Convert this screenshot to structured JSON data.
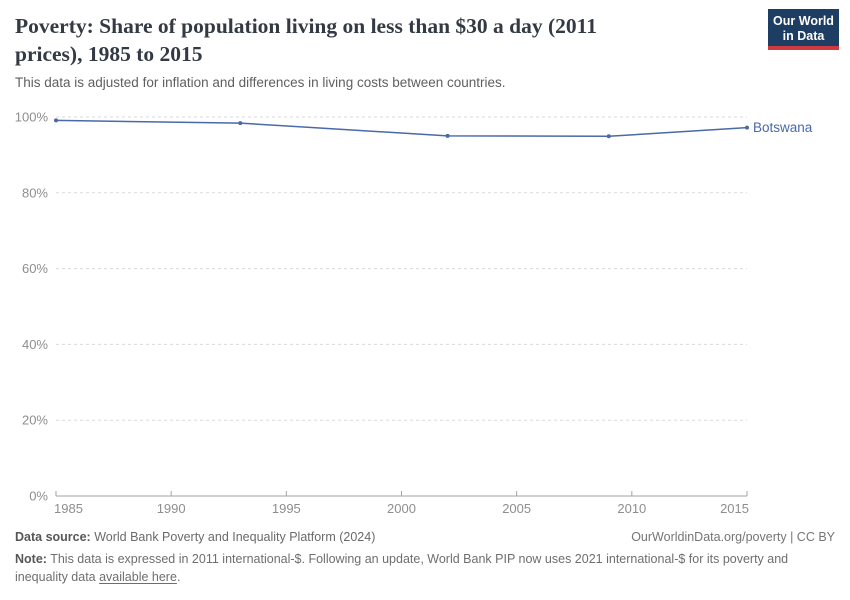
{
  "header": {
    "title_line1": "Poverty: Share of population living on less than $30 a day (2011",
    "title_line2": "prices), 1985 to 2015",
    "subtitle": "This data is adjusted for inflation and differences in living costs between countries.",
    "logo_line1": "Our World",
    "logo_line2": "in Data"
  },
  "chart_data": {
    "type": "line",
    "title": "Poverty: Share of population living on less than $30 a day (2011 prices), 1985 to 2015",
    "subtitle": "This data is adjusted for inflation and differences in living costs between countries.",
    "xlabel": "",
    "ylabel": "",
    "xlim": [
      1985,
      2015
    ],
    "ylim": [
      0,
      100
    ],
    "grid": "horizontal-dashed",
    "legend_position": "end-of-line-label",
    "x_ticks": [
      {
        "value": 1985,
        "label": "1985"
      },
      {
        "value": 1990,
        "label": "1990"
      },
      {
        "value": 1995,
        "label": "1995"
      },
      {
        "value": 2000,
        "label": "2000"
      },
      {
        "value": 2005,
        "label": "2005"
      },
      {
        "value": 2010,
        "label": "2010"
      },
      {
        "value": 2015,
        "label": "2015"
      }
    ],
    "y_ticks": [
      {
        "value": 0,
        "label": "0%"
      },
      {
        "value": 20,
        "label": "20%"
      },
      {
        "value": 40,
        "label": "40%"
      },
      {
        "value": 60,
        "label": "60%"
      },
      {
        "value": 80,
        "label": "80%"
      },
      {
        "value": 100,
        "label": "100%"
      }
    ],
    "series": [
      {
        "name": "Botswana",
        "color": "#4a69a8",
        "points": [
          {
            "x": 1985,
            "y": 99.1
          },
          {
            "x": 1993,
            "y": 98.4
          },
          {
            "x": 2002,
            "y": 95.0
          },
          {
            "x": 2009,
            "y": 94.9
          },
          {
            "x": 2015,
            "y": 97.2
          }
        ]
      }
    ]
  },
  "footer": {
    "datasource_label": "Data source:",
    "datasource_text": " World Bank Poverty and Inequality Platform (2024)",
    "rights": "OurWorldinData.org/poverty | CC BY",
    "note_label": "Note:",
    "note_before_link": " This data is expressed in 2011 international-$. Following an update, World Bank PIP now uses 2021 international-$ for its poverty and inequality data ",
    "note_link": "available here",
    "note_after_link": "."
  },
  "colors": {
    "line": "#4a69a8",
    "gridline": "#dadada",
    "axis": "#a3a3a3",
    "tick_label": "#8e8e8e",
    "logo_bg": "#1d3d63",
    "logo_red": "#d0393f",
    "title": "#333a44"
  }
}
